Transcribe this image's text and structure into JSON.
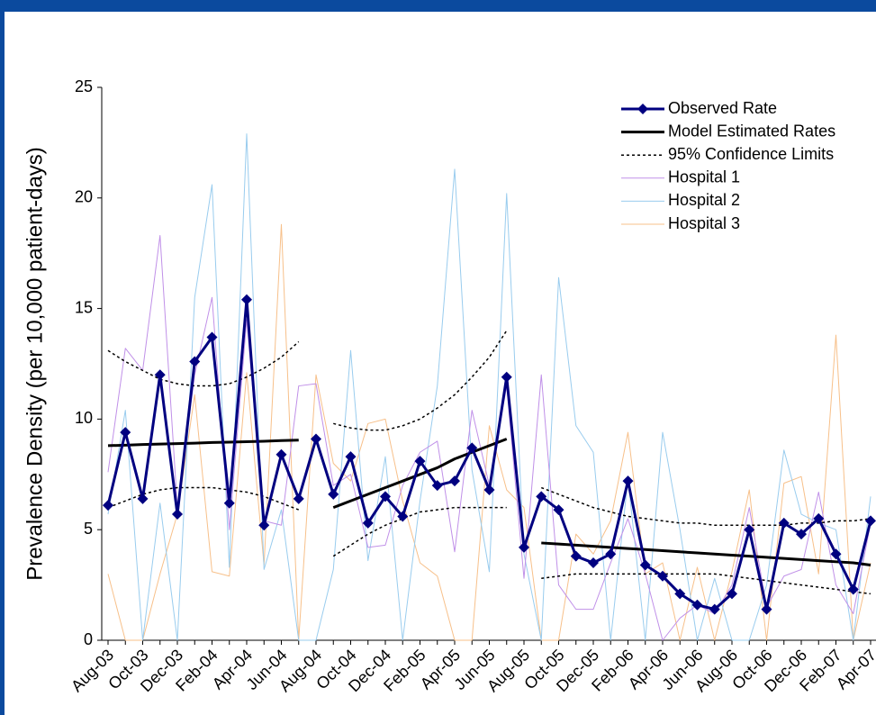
{
  "chart_data": {
    "type": "line",
    "y_label": "Prevalence Density (per 10,000 patient-days)",
    "categories": [
      "Aug-03",
      null,
      "Oct-03",
      null,
      "Dec-03",
      null,
      "Feb-04",
      null,
      "Apr-04",
      null,
      "Jun-04",
      null,
      "Aug-04",
      null,
      "Oct-04",
      null,
      "Dec-04",
      null,
      "Feb-05",
      null,
      "Apr-05",
      null,
      "Jun-05",
      null,
      "Aug-05",
      null,
      "Oct-05",
      null,
      "Dec-05",
      null,
      "Feb-06",
      null,
      "Apr-06",
      null,
      "Jun-06",
      null,
      "Aug-06",
      null,
      "Oct-06",
      null,
      "Dec-06",
      null,
      "Feb-07",
      null,
      "Apr-07"
    ],
    "ylim": [
      0,
      25
    ],
    "yticks": [
      0,
      5,
      10,
      15,
      20,
      25
    ],
    "grid": false,
    "legend": "top-right",
    "series": [
      {
        "name": "Observed Rate",
        "color": "#000080",
        "linewidth": 3,
        "marker": "diamond",
        "dash": false,
        "values": [
          6.1,
          9.4,
          6.4,
          12.0,
          5.7,
          12.6,
          13.7,
          6.2,
          15.4,
          5.2,
          8.4,
          6.4,
          9.1,
          6.6,
          8.3,
          5.3,
          6.5,
          5.6,
          8.1,
          7.0,
          7.2,
          8.7,
          6.8,
          11.9,
          4.2,
          6.5,
          5.9,
          3.8,
          3.5,
          3.9,
          7.2,
          3.4,
          2.9,
          2.1,
          1.6,
          1.4,
          2.1,
          5.0,
          1.4,
          5.3,
          4.8,
          5.5,
          3.9,
          2.3,
          5.4
        ]
      },
      {
        "name": "Model Estimated Rates",
        "color": "#000000",
        "linewidth": 3,
        "dash": false,
        "values": [
          8.8,
          8.82,
          8.85,
          8.87,
          8.89,
          8.91,
          8.94,
          8.96,
          8.98,
          9.0,
          9.03,
          9.05,
          null,
          6.0,
          6.3,
          6.6,
          6.9,
          7.2,
          7.5,
          7.8,
          8.2,
          8.5,
          8.8,
          9.1,
          null,
          4.4,
          4.35,
          4.3,
          4.25,
          4.2,
          4.15,
          4.1,
          4.05,
          4.0,
          3.95,
          3.9,
          3.85,
          3.8,
          3.75,
          3.7,
          3.65,
          3.6,
          3.55,
          3.5,
          3.4
        ]
      },
      {
        "name": "95% Confidence Limits",
        "color": "#000000",
        "linewidth": 1.5,
        "dash": true,
        "values": [
          13.1,
          12.6,
          12.2,
          11.8,
          11.6,
          11.5,
          11.5,
          11.6,
          11.9,
          12.3,
          12.8,
          13.5,
          null,
          9.8,
          9.6,
          9.5,
          9.5,
          9.7,
          10.0,
          10.5,
          11.1,
          11.9,
          12.8,
          14.0,
          null,
          6.9,
          6.6,
          6.3,
          6.0,
          5.8,
          5.6,
          5.5,
          5.4,
          5.3,
          5.3,
          5.2,
          5.2,
          5.2,
          5.2,
          5.2,
          5.3,
          5.3,
          5.4,
          5.4,
          5.5
        ]
      },
      {
        "color": "#000000",
        "linewidth": 1.5,
        "dash": true,
        "values": [
          6.0,
          6.3,
          6.6,
          6.8,
          6.9,
          6.9,
          6.9,
          6.8,
          6.7,
          6.5,
          6.2,
          5.9,
          null,
          3.8,
          4.3,
          4.8,
          5.2,
          5.5,
          5.8,
          5.9,
          6.0,
          6.0,
          6.0,
          6.0,
          null,
          2.8,
          2.9,
          3.0,
          3.0,
          3.0,
          3.0,
          3.0,
          3.0,
          3.0,
          3.0,
          3.0,
          2.9,
          2.8,
          2.7,
          2.6,
          2.5,
          2.4,
          2.3,
          2.2,
          2.1
        ]
      },
      {
        "name": "Hospital 1",
        "color": "#c090e8",
        "linewidth": 1,
        "dash": false,
        "values": [
          7.6,
          13.2,
          12.2,
          18.3,
          6.0,
          12.0,
          15.5,
          5.0,
          14.5,
          5.4,
          5.2,
          11.5,
          11.6,
          7.0,
          7.5,
          4.2,
          4.3,
          7.0,
          8.5,
          9.0,
          4.0,
          10.4,
          7.0,
          11.5,
          2.8,
          12.0,
          2.5,
          1.4,
          1.4,
          3.5,
          5.5,
          3.0,
          0,
          1.0,
          1.6,
          1.2,
          2.5,
          6.0,
          1.5,
          2.9,
          3.2,
          6.7,
          2.5,
          1.2,
          5.3
        ]
      },
      {
        "name": "Hospital 2",
        "color": "#99ccee",
        "linewidth": 1,
        "dash": false,
        "values": [
          5.7,
          10.4,
          0,
          6.2,
          0,
          15.5,
          20.6,
          3.3,
          22.9,
          3.2,
          5.9,
          0,
          0,
          3.2,
          13.1,
          3.6,
          8.3,
          0,
          6.3,
          11.5,
          21.3,
          7.7,
          3.1,
          20.2,
          3.9,
          0,
          16.4,
          9.7,
          8.5,
          0,
          7.3,
          0,
          9.4,
          5.0,
          0,
          2.8,
          0,
          0,
          2.5,
          8.6,
          5.7,
          5.3,
          5.0,
          0,
          6.5
        ]
      },
      {
        "name": "Hospital 3",
        "color": "#f7c08a",
        "linewidth": 1,
        "dash": false,
        "values": [
          3.0,
          0,
          0,
          3.0,
          5.7,
          11.1,
          3.1,
          2.9,
          12.1,
          3.4,
          18.8,
          0,
          12.0,
          8.0,
          7.2,
          9.8,
          10.0,
          6.3,
          3.5,
          2.9,
          0,
          0,
          9.7,
          6.8,
          6.0,
          0,
          0,
          4.8,
          3.9,
          5.4,
          9.4,
          3.0,
          3.5,
          0,
          3.3,
          0,
          3.1,
          6.8,
          0,
          7.1,
          7.4,
          3.0,
          13.8,
          0,
          3.5
        ]
      }
    ]
  }
}
